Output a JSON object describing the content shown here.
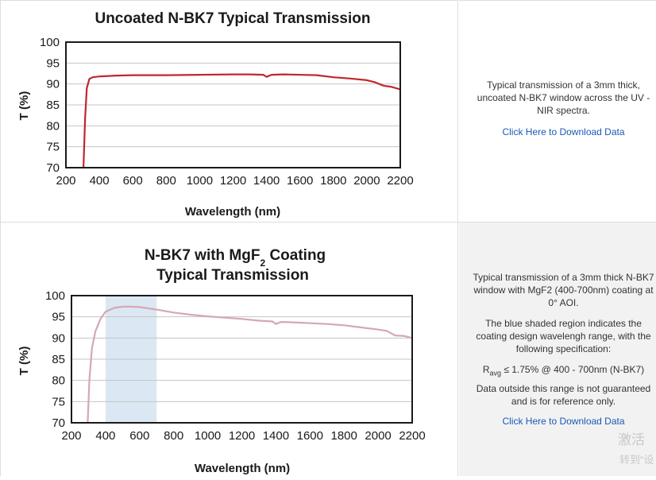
{
  "chart_data": [
    {
      "type": "line",
      "title": "Uncoated N-BK7 Typical Transmission",
      "xlabel": "Wavelength (nm)",
      "ylabel": "T (%)",
      "xlim": [
        200,
        2200
      ],
      "ylim": [
        70,
        100
      ],
      "xticks": [
        200,
        400,
        600,
        800,
        1000,
        1200,
        1400,
        1600,
        1800,
        2000,
        2200
      ],
      "yticks": [
        70,
        75,
        80,
        85,
        90,
        95,
        100
      ],
      "grid": true,
      "line_color": "#c0272d",
      "series": [
        {
          "x": [
            305,
            315,
            325,
            340,
            360,
            400,
            500,
            600,
            800,
            1000,
            1200,
            1300,
            1380,
            1400,
            1430,
            1500,
            1700,
            1800,
            1900,
            2000,
            2050,
            2100,
            2150,
            2200
          ],
          "y": [
            70,
            82,
            89,
            91.2,
            91.6,
            91.8,
            92.0,
            92.1,
            92.1,
            92.2,
            92.3,
            92.3,
            92.2,
            91.7,
            92.2,
            92.3,
            92.1,
            91.6,
            91.3,
            90.9,
            90.4,
            89.6,
            89.3,
            88.7
          ]
        }
      ],
      "description": "Typical transmission of a 3mm thick, uncoated N-BK7 window across the UV - NIR spectra.",
      "download_link": "Click Here to Download Data"
    },
    {
      "type": "line",
      "title": "N-BK7 with MgF",
      "title_sub": "2",
      "title_rest": " Coating",
      "title_line2": "Typical Transmission",
      "xlabel": "Wavelength (nm)",
      "ylabel": "T (%)",
      "xlim": [
        200,
        2200
      ],
      "ylim": [
        70,
        100
      ],
      "xticks": [
        200,
        400,
        600,
        800,
        1000,
        1200,
        1400,
        1600,
        1800,
        2000,
        2200
      ],
      "yticks": [
        70,
        75,
        80,
        85,
        90,
        95,
        100
      ],
      "grid": true,
      "line_color": "#d4a8b3",
      "shaded_region": {
        "x": [
          400,
          700
        ],
        "color": "#dbe8f3"
      },
      "series": [
        {
          "x": [
            295,
            305,
            320,
            340,
            370,
            400,
            450,
            500,
            550,
            600,
            700,
            800,
            900,
            1000,
            1200,
            1300,
            1380,
            1400,
            1430,
            1500,
            1700,
            1800,
            1900,
            2000,
            2050,
            2100,
            2150,
            2200
          ],
          "y": [
            70,
            80,
            87.5,
            91.5,
            94.5,
            96.2,
            97.1,
            97.4,
            97.4,
            97.3,
            96.7,
            96.0,
            95.5,
            95.1,
            94.5,
            94.1,
            93.9,
            93.3,
            93.8,
            93.7,
            93.3,
            93.0,
            92.5,
            92.0,
            91.7,
            90.6,
            90.5,
            90.0
          ]
        }
      ],
      "description": {
        "para1": "Typical transmission of a 3mm thick N-BK7 window with MgF2 (400-700nm) coating at 0° AOI.",
        "para2": "The blue shaded region indicates the coating design wavelengh range, with the following specification:",
        "spec_r": "R",
        "spec_sub": "avg",
        "spec_rest": " ≤ 1.75% @ 400 - 700nm (N-BK7)",
        "para3": "Data outside this range is not guaranteed and is for reference only."
      },
      "download_link": "Click Here to Download Data"
    }
  ],
  "watermark": {
    "line1": "激活",
    "line2": "转到“设"
  }
}
